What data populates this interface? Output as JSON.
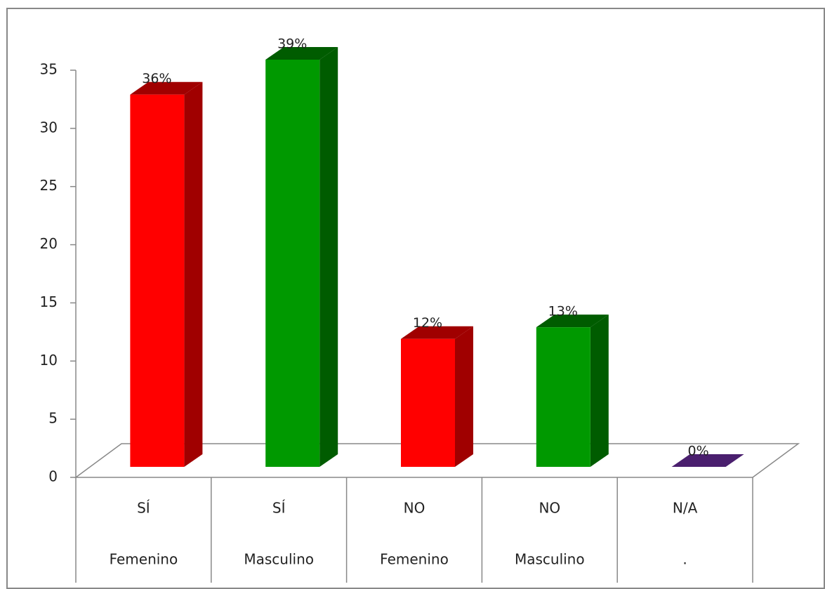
{
  "chart_data": {
    "type": "bar3d",
    "categories": [
      [
        "SÍ",
        "Femenino"
      ],
      [
        "SÍ",
        "Masculino"
      ],
      [
        "NO",
        "Femenino"
      ],
      [
        "NO",
        "Masculino"
      ],
      [
        "N/A",
        "."
      ]
    ],
    "values": [
      32,
      35,
      11,
      12,
      0
    ],
    "value_labels": [
      "36%",
      "39%",
      "12%",
      "13%",
      "0%"
    ],
    "colors": [
      "#ff0000",
      "#009900",
      "#ff0000",
      "#009900",
      "#7030a0"
    ],
    "side_colors": [
      "#a00000",
      "#005c00",
      "#a00000",
      "#005c00",
      "#4a1f6e"
    ],
    "ylim": [
      0,
      35
    ],
    "yticks": [
      0,
      5,
      10,
      15,
      20,
      25,
      30,
      35
    ]
  }
}
